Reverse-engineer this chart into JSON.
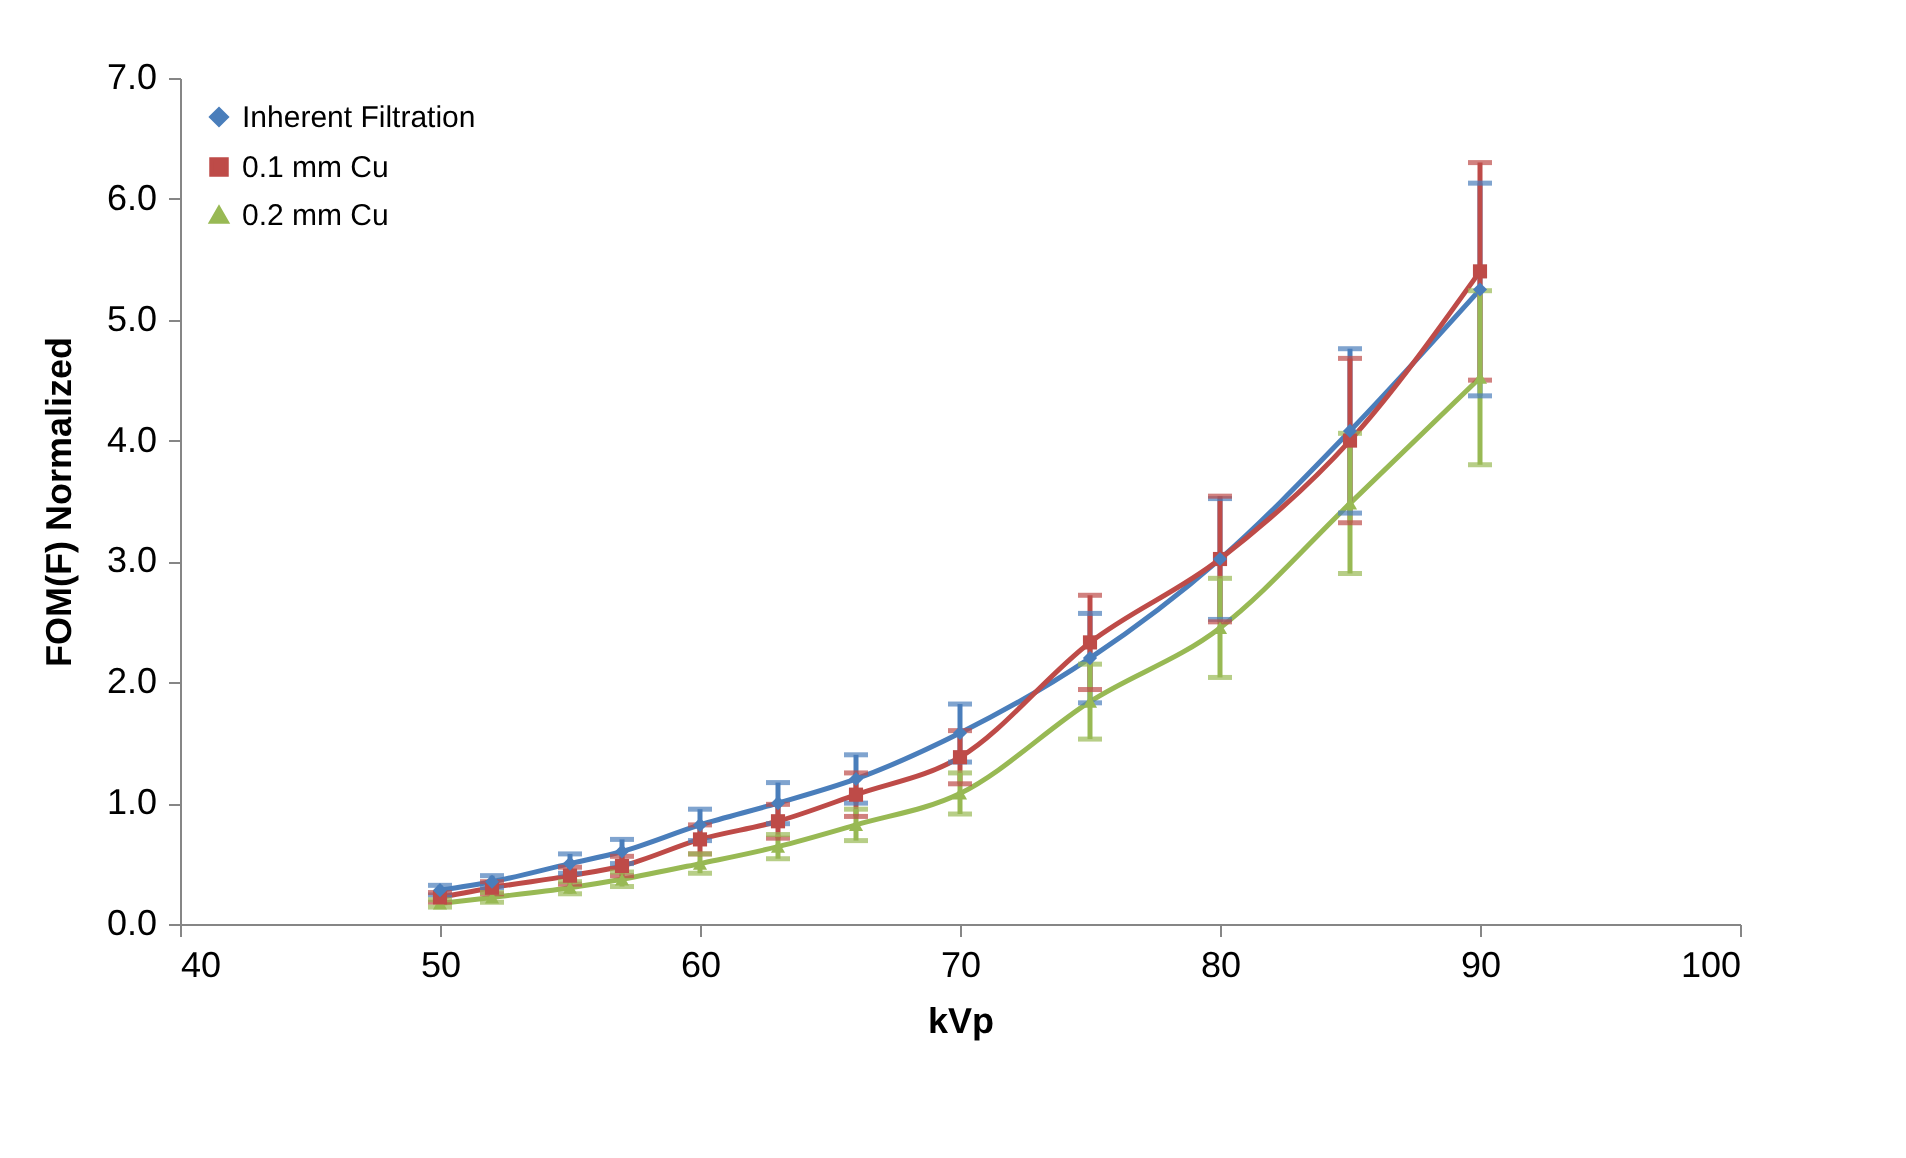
{
  "chart_data": {
    "type": "line",
    "xlabel": "kVp",
    "ylabel": "FOM(F) Normalized",
    "x": [
      50,
      52,
      55,
      57,
      60,
      63,
      66,
      70,
      75,
      80,
      85,
      90
    ],
    "xlim": [
      40,
      100
    ],
    "xticks": [
      40,
      50,
      60,
      70,
      80,
      90,
      100
    ],
    "ylim": [
      0,
      7
    ],
    "yticks": [
      {
        "value": 0,
        "label": "0.0"
      },
      {
        "value": 1,
        "label": "1.0"
      },
      {
        "value": 2,
        "label": "2.0"
      },
      {
        "value": 3,
        "label": "3.0"
      },
      {
        "value": 4,
        "label": "4.0"
      },
      {
        "value": 5,
        "label": "5.0"
      },
      {
        "value": 6,
        "label": "6.0"
      },
      {
        "value": 7,
        "label": "7.0"
      }
    ],
    "grid": false,
    "legend": "top left",
    "line_style": "solid",
    "series": [
      {
        "name": "Inherent Filtration",
        "color": "#4a7ebb",
        "marker": "diamond",
        "values": [
          0.28,
          0.35,
          0.5,
          0.6,
          0.82,
          1.0,
          1.2,
          1.58,
          2.2,
          3.02,
          4.08,
          5.25
        ],
        "errors": [
          0.04,
          0.05,
          0.08,
          0.1,
          0.13,
          0.17,
          0.2,
          0.24,
          0.37,
          0.5,
          0.68,
          0.88
        ]
      },
      {
        "name": "0.1 mm Cu",
        "color": "#be4b48",
        "marker": "square",
        "values": [
          0.22,
          0.3,
          0.4,
          0.48,
          0.7,
          0.85,
          1.07,
          1.38,
          2.33,
          3.02,
          4.0,
          5.4
        ],
        "errors": [
          0.04,
          0.05,
          0.07,
          0.08,
          0.12,
          0.14,
          0.18,
          0.22,
          0.39,
          0.52,
          0.68,
          0.9
        ]
      },
      {
        "name": "0.2 mm Cu",
        "color": "#98b954",
        "marker": "triangle",
        "values": [
          0.17,
          0.22,
          0.3,
          0.37,
          0.5,
          0.64,
          0.82,
          1.08,
          1.84,
          2.45,
          3.48,
          4.52
        ],
        "errors": [
          0.03,
          0.04,
          0.05,
          0.06,
          0.08,
          0.1,
          0.13,
          0.17,
          0.31,
          0.41,
          0.58,
          0.72
        ]
      }
    ]
  }
}
